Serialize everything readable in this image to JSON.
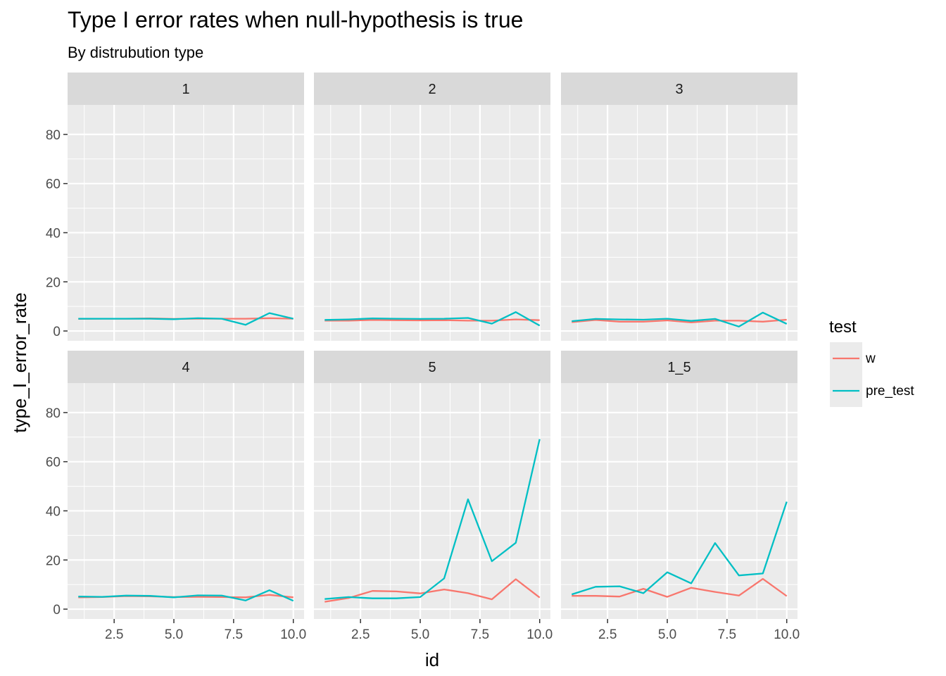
{
  "chart_data": {
    "type": "line",
    "title": "Type I error rates when null-hypothesis is true",
    "subtitle": "By distrubution type",
    "xlabel": "id",
    "ylabel": "type_I_error_rate",
    "xlim": [
      0.55,
      10.45
    ],
    "ylim": [
      -4,
      92
    ],
    "xticks": [
      2.5,
      5.0,
      7.5,
      10.0
    ],
    "xtick_labels": [
      "2.5",
      "5.0",
      "7.5",
      "10.0"
    ],
    "yticks": [
      0,
      20,
      40,
      60,
      80
    ],
    "ytick_labels": [
      "0",
      "20",
      "40",
      "60",
      "80"
    ],
    "grid": true,
    "legend": {
      "title": "test",
      "position": "right",
      "entries": [
        {
          "name": "w",
          "color": "#F8766D"
        },
        {
          "name": "pre_test",
          "color": "#00BFC4"
        }
      ]
    },
    "x": [
      1,
      2,
      3,
      4,
      5,
      6,
      7,
      8,
      9,
      10
    ],
    "panels": [
      {
        "label": "1",
        "series": [
          {
            "name": "w",
            "values": [
              4.9,
              5.0,
              5.0,
              5.1,
              4.9,
              5.0,
              5.0,
              5.0,
              5.2,
              5.0
            ]
          },
          {
            "name": "pre_test",
            "values": [
              5.0,
              5.0,
              5.0,
              5.0,
              4.8,
              5.2,
              5.0,
              2.5,
              7.3,
              5.0
            ]
          }
        ]
      },
      {
        "label": "2",
        "series": [
          {
            "name": "w",
            "values": [
              4.2,
              4.2,
              4.5,
              4.4,
              4.3,
              4.4,
              4.2,
              4.2,
              4.7,
              4.4
            ]
          },
          {
            "name": "pre_test",
            "values": [
              4.5,
              4.7,
              5.1,
              5.0,
              4.9,
              5.0,
              5.3,
              3.0,
              7.7,
              2.2
            ]
          }
        ]
      },
      {
        "label": "3",
        "series": [
          {
            "name": "w",
            "values": [
              3.6,
              4.5,
              3.8,
              3.8,
              4.3,
              3.5,
              4.2,
              4.2,
              3.8,
              4.6
            ]
          },
          {
            "name": "pre_test",
            "values": [
              4.0,
              4.9,
              4.7,
              4.6,
              5.0,
              4.1,
              4.9,
              1.8,
              7.5,
              2.9
            ]
          }
        ]
      },
      {
        "label": "4",
        "series": [
          {
            "name": "w",
            "values": [
              4.8,
              4.9,
              5.3,
              5.2,
              4.9,
              5.0,
              4.9,
              4.8,
              5.8,
              4.8
            ]
          },
          {
            "name": "pre_test",
            "values": [
              5.1,
              5.0,
              5.5,
              5.4,
              4.8,
              5.6,
              5.5,
              3.5,
              7.7,
              3.4
            ]
          }
        ]
      },
      {
        "label": "5",
        "series": [
          {
            "name": "w",
            "values": [
              3.0,
              4.5,
              7.4,
              7.2,
              6.4,
              8.0,
              6.5,
              4.0,
              12.2,
              4.7
            ]
          },
          {
            "name": "pre_test",
            "values": [
              4.1,
              4.9,
              4.4,
              4.4,
              4.9,
              12.5,
              44.7,
              19.5,
              27.0,
              69.2
            ]
          }
        ]
      },
      {
        "label": "1_5",
        "series": [
          {
            "name": "w",
            "values": [
              5.4,
              5.4,
              5.1,
              8.3,
              5.0,
              8.7,
              7.0,
              5.5,
              12.3,
              5.3
            ]
          },
          {
            "name": "pre_test",
            "values": [
              6.0,
              9.1,
              9.3,
              6.5,
              15.0,
              10.5,
              26.9,
              13.7,
              14.5,
              43.7
            ]
          }
        ]
      }
    ]
  }
}
